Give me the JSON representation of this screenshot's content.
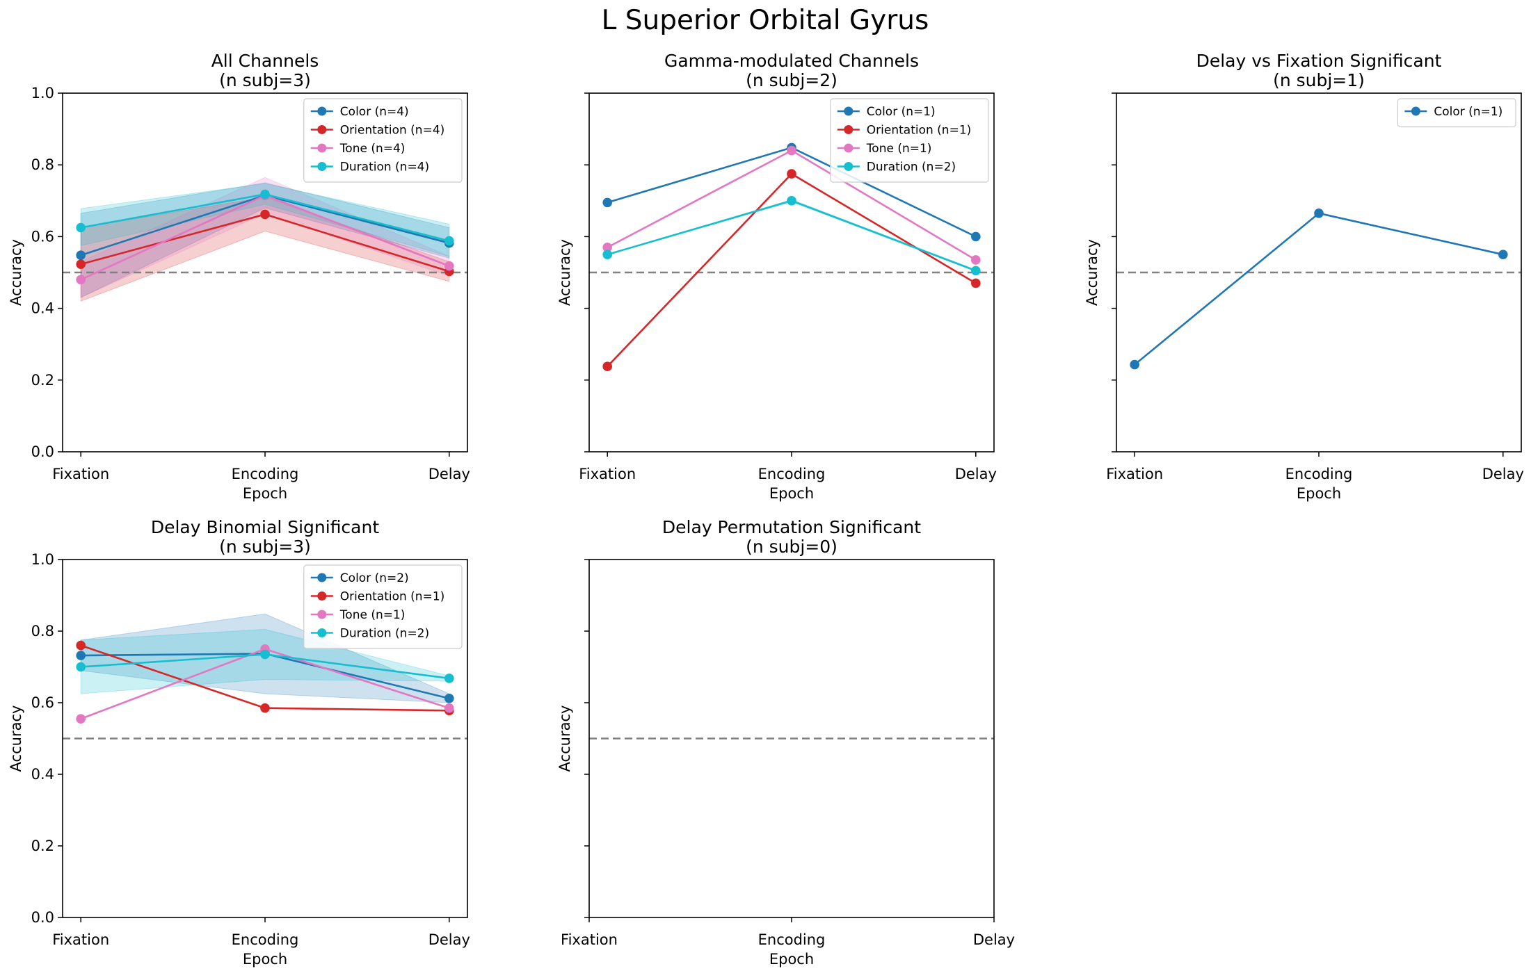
{
  "figure": {
    "title": "L Superior Orbital Gyrus"
  },
  "colors": {
    "Color": "#1f77b4",
    "Orientation": "#d62728",
    "Tone": "#e377c2",
    "Duration": "#17becf",
    "chance": "#808080"
  },
  "chart_data": [
    {
      "type": "line",
      "title": "All Channels",
      "subtitle": "(n subj=3)",
      "xlabel": "Epoch",
      "ylabel": "Accuracy",
      "categories": [
        "Fixation",
        "Encoding",
        "Delay"
      ],
      "ylim": [
        0,
        1
      ],
      "yticks": [
        "0.0",
        "0.2",
        "0.4",
        "0.6",
        "0.8",
        "1.0"
      ],
      "show_yticklabels": true,
      "chance_level": 0.5,
      "legend": "upper right",
      "series": [
        {
          "name": "Color (n=4)",
          "key": "Color",
          "values": [
            0.548,
            0.715,
            0.582
          ],
          "lower": [
            0.43,
            0.68,
            0.54
          ],
          "upper": [
            0.665,
            0.75,
            0.625
          ]
        },
        {
          "name": "Orientation (n=4)",
          "key": "Orientation",
          "values": [
            0.523,
            0.662,
            0.503
          ],
          "lower": [
            0.42,
            0.615,
            0.475
          ],
          "upper": [
            0.625,
            0.71,
            0.53
          ]
        },
        {
          "name": "Tone (n=4)",
          "key": "Tone",
          "values": [
            0.48,
            0.715,
            0.518
          ],
          "lower": [
            0.43,
            0.665,
            0.49
          ],
          "upper": [
            0.53,
            0.765,
            0.545
          ]
        },
        {
          "name": "Duration (n=4)",
          "key": "Duration",
          "values": [
            0.625,
            0.718,
            0.588
          ],
          "lower": [
            0.575,
            0.69,
            0.545
          ],
          "upper": [
            0.678,
            0.748,
            0.635
          ]
        }
      ]
    },
    {
      "type": "line",
      "title": "Gamma-modulated Channels",
      "subtitle": "(n subj=2)",
      "xlabel": "Epoch",
      "ylabel": "Accuracy",
      "categories": [
        "Fixation",
        "Encoding",
        "Delay"
      ],
      "ylim": [
        0,
        1
      ],
      "yticks": [
        "0.0",
        "0.2",
        "0.4",
        "0.6",
        "0.8",
        "1.0"
      ],
      "show_yticklabels": false,
      "chance_level": 0.5,
      "legend": "upper right",
      "series": [
        {
          "name": "Color (n=1)",
          "key": "Color",
          "values": [
            0.695,
            0.848,
            0.6
          ]
        },
        {
          "name": "Orientation (n=1)",
          "key": "Orientation",
          "values": [
            0.238,
            0.775,
            0.47
          ]
        },
        {
          "name": "Tone (n=1)",
          "key": "Tone",
          "values": [
            0.57,
            0.84,
            0.535
          ]
        },
        {
          "name": "Duration (n=2)",
          "key": "Duration",
          "values": [
            0.55,
            0.7,
            0.505
          ],
          "lower": [
            0.55,
            0.697,
            0.503
          ],
          "upper": [
            0.55,
            0.703,
            0.508
          ]
        }
      ]
    },
    {
      "type": "line",
      "title": "Delay vs Fixation Significant",
      "subtitle": "(n subj=1)",
      "xlabel": "Epoch",
      "ylabel": "Accuracy",
      "categories": [
        "Fixation",
        "Encoding",
        "Delay"
      ],
      "ylim": [
        0,
        1
      ],
      "yticks": [
        "0.0",
        "0.2",
        "0.4",
        "0.6",
        "0.8",
        "1.0"
      ],
      "show_yticklabels": false,
      "chance_level": 0.5,
      "legend": "upper right",
      "series": [
        {
          "name": "Color (n=1)",
          "key": "Color",
          "values": [
            0.243,
            0.665,
            0.55
          ]
        }
      ]
    },
    {
      "type": "line",
      "title": "Delay Binomial Significant",
      "subtitle": "(n subj=3)",
      "xlabel": "Epoch",
      "ylabel": "Accuracy",
      "categories": [
        "Fixation",
        "Encoding",
        "Delay"
      ],
      "ylim": [
        0,
        1
      ],
      "yticks": [
        "0.0",
        "0.2",
        "0.4",
        "0.6",
        "0.8",
        "1.0"
      ],
      "show_yticklabels": true,
      "chance_level": 0.5,
      "legend": "upper right",
      "series": [
        {
          "name": "Color (n=2)",
          "key": "Color",
          "values": [
            0.732,
            0.737,
            0.612
          ],
          "lower": [
            0.69,
            0.625,
            0.6
          ],
          "upper": [
            0.775,
            0.848,
            0.625
          ]
        },
        {
          "name": "Orientation (n=1)",
          "key": "Orientation",
          "values": [
            0.76,
            0.585,
            0.578
          ]
        },
        {
          "name": "Tone (n=1)",
          "key": "Tone",
          "values": [
            0.555,
            0.75,
            0.585
          ]
        },
        {
          "name": "Duration (n=2)",
          "key": "Duration",
          "values": [
            0.7,
            0.735,
            0.668
          ],
          "lower": [
            0.625,
            0.665,
            0.66
          ],
          "upper": [
            0.775,
            0.805,
            0.675
          ]
        }
      ]
    },
    {
      "type": "line",
      "title": "Delay Permutation Significant",
      "subtitle": "(n subj=0)",
      "xlabel": "Epoch",
      "ylabel": "Accuracy",
      "categories": [
        "Fixation",
        "Encoding",
        "Delay"
      ],
      "ylim": [
        0,
        1
      ],
      "yticks": [
        "0.0",
        "0.2",
        "0.4",
        "0.6",
        "0.8",
        "1.0"
      ],
      "show_yticklabels": false,
      "chance_level": 0.5,
      "legend": "none",
      "series": []
    }
  ]
}
